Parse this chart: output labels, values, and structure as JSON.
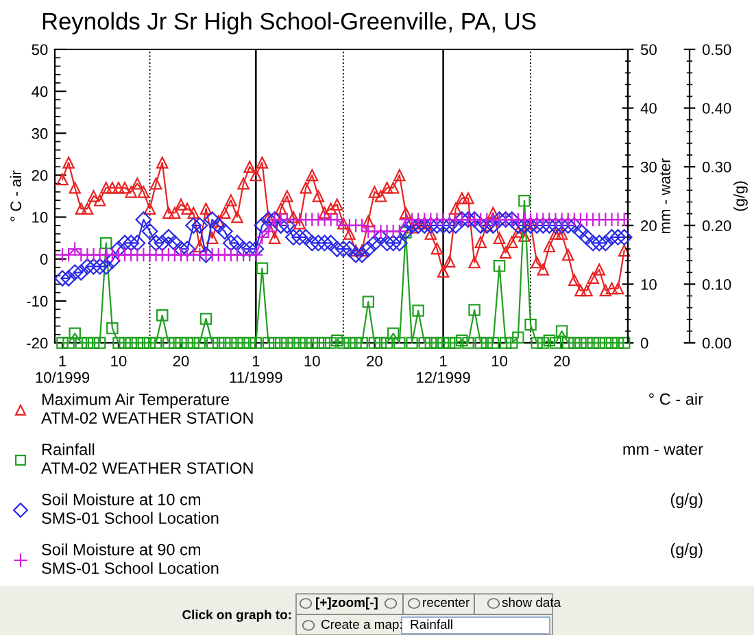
{
  "chart_data": {
    "type": "line",
    "title": "Reynolds Jr Sr High School-Greenville, PA, US",
    "ylabel": "° C - air",
    "y2label": "mm - water",
    "y3label": "(g/g)",
    "x": [
      "1999-10-01",
      "1999-10-02",
      "1999-10-03",
      "1999-10-04",
      "1999-10-05",
      "1999-10-06",
      "1999-10-07",
      "1999-10-08",
      "1999-10-09",
      "1999-10-10",
      "1999-10-11",
      "1999-10-12",
      "1999-10-13",
      "1999-10-14",
      "1999-10-15",
      "1999-10-16",
      "1999-10-17",
      "1999-10-18",
      "1999-10-19",
      "1999-10-20",
      "1999-10-21",
      "1999-10-22",
      "1999-10-23",
      "1999-10-24",
      "1999-10-25",
      "1999-10-26",
      "1999-10-27",
      "1999-10-28",
      "1999-10-29",
      "1999-10-30",
      "1999-10-31",
      "1999-11-01",
      "1999-11-02",
      "1999-11-03",
      "1999-11-04",
      "1999-11-05",
      "1999-11-06",
      "1999-11-07",
      "1999-11-08",
      "1999-11-09",
      "1999-11-10",
      "1999-11-11",
      "1999-11-12",
      "1999-11-13",
      "1999-11-14",
      "1999-11-15",
      "1999-11-16",
      "1999-11-17",
      "1999-11-18",
      "1999-11-19",
      "1999-11-20",
      "1999-11-21",
      "1999-11-22",
      "1999-11-23",
      "1999-11-24",
      "1999-11-25",
      "1999-11-26",
      "1999-11-27",
      "1999-11-28",
      "1999-11-29",
      "1999-11-30",
      "1999-12-01",
      "1999-12-02",
      "1999-12-03",
      "1999-12-04",
      "1999-12-05",
      "1999-12-06",
      "1999-12-07",
      "1999-12-08",
      "1999-12-09",
      "1999-12-10",
      "1999-12-11",
      "1999-12-12",
      "1999-12-13",
      "1999-12-14",
      "1999-12-15",
      "1999-12-16",
      "1999-12-17",
      "1999-12-18",
      "1999-12-19",
      "1999-12-20",
      "1999-12-21",
      "1999-12-22",
      "1999-12-23",
      "1999-12-24",
      "1999-12-25",
      "1999-12-26",
      "1999-12-27",
      "1999-12-28",
      "1999-12-29",
      "1999-12-30"
    ],
    "series": [
      {
        "name": "Maximum Air Temperature\nATM-02 WEATHER STATION",
        "color": "#e82424",
        "marker": "triangle",
        "axis": "y",
        "values": [
          19,
          23,
          17,
          12,
          12,
          15,
          14,
          17,
          17,
          17,
          17,
          16,
          18,
          16,
          12,
          18,
          23,
          11,
          11,
          13,
          12,
          11,
          3,
          12,
          5,
          9,
          11,
          14,
          10,
          18,
          22,
          20,
          23,
          10,
          5,
          12,
          15,
          10,
          8.5,
          17,
          20,
          15,
          11,
          12,
          13,
          8.5,
          6,
          2,
          2,
          9,
          16,
          15,
          17,
          17,
          20,
          11,
          7.5,
          8.5,
          8.5,
          6,
          2.5,
          -3,
          -0.6,
          12,
          14.5,
          14.5,
          -0.8,
          4,
          8,
          11,
          5,
          1.5,
          4,
          6.5,
          5.5,
          8.5,
          -0.8,
          -2.5,
          3,
          6,
          6,
          1,
          -5,
          -7.5,
          -7.5,
          -4.5,
          -2.5,
          -7.5,
          -7,
          -7,
          2
        ]
      },
      {
        "name": "Rainfall\nATM-02 WEATHER STATION",
        "color": "#22a022",
        "marker": "square",
        "axis": "y2",
        "values": [
          0,
          0,
          1.6,
          0,
          0,
          0,
          0,
          17,
          2.5,
          0,
          0,
          0,
          0,
          0,
          0,
          0,
          4.7,
          0,
          0,
          0,
          0,
          0,
          0,
          4.1,
          0,
          0,
          0,
          0,
          0,
          0,
          0,
          0,
          12.7,
          0,
          0,
          0,
          0,
          0,
          0,
          0,
          0,
          0,
          0,
          0,
          0.4,
          0,
          0,
          0,
          0,
          7,
          0,
          0,
          0,
          1.6,
          0,
          18.8,
          0,
          5.5,
          0,
          0,
          0,
          0,
          0,
          0,
          0.4,
          0,
          5.6,
          0,
          0,
          0,
          13.1,
          0,
          0,
          0.9,
          24.2,
          3.1,
          0,
          0,
          0.4,
          0,
          2,
          0,
          0,
          0,
          0,
          0,
          0,
          0,
          0,
          0,
          0
        ]
      },
      {
        "name": "Soil Moisture at 10 cm\nSMS-01 School Location",
        "color": "#2a2ae6",
        "marker": "diamond",
        "axis": "y3",
        "values": [
          0.11,
          0.11,
          0.12,
          0.12,
          0.13,
          0.13,
          0.13,
          0.13,
          0.14,
          0.16,
          0.17,
          0.17,
          0.17,
          0.21,
          0.19,
          0.17,
          0.17,
          0.18,
          0.17,
          0.16,
          0.16,
          0.2,
          0.2,
          0.15,
          0.21,
          0.2,
          0.19,
          0.17,
          0.17,
          0.16,
          0.16,
          0.16,
          0.2,
          0.21,
          0.21,
          0.2,
          0.2,
          0.18,
          0.18,
          0.18,
          0.17,
          0.17,
          0.17,
          0.17,
          0.16,
          0.16,
          0.16,
          0.15,
          0.15,
          0.16,
          0.17,
          0.18,
          0.17,
          0.17,
          0.17,
          0.19,
          0.2,
          0.2,
          0.2,
          0.2,
          0.2,
          0.2,
          0.2,
          0.2,
          0.21,
          0.21,
          0.21,
          0.2,
          0.2,
          0.2,
          0.21,
          0.21,
          0.21,
          0.2,
          0.2,
          0.2,
          0.2,
          0.2,
          0.2,
          0.2,
          0.2,
          0.2,
          0.2,
          0.19,
          0.18,
          0.17,
          0.17,
          0.17,
          0.18,
          0.18,
          0.18
        ]
      },
      {
        "name": "Soil Moisture at 90 cm\nSMS-01 School Location",
        "color": "#cc22dd",
        "marker": "cross",
        "axis": "y3",
        "values": [
          0.15,
          0.15,
          0.16,
          0.15,
          0.15,
          0.15,
          0.15,
          0.15,
          0.15,
          0.15,
          0.15,
          0.15,
          0.15,
          0.15,
          0.15,
          0.15,
          0.15,
          0.15,
          0.15,
          0.15,
          0.15,
          0.15,
          0.15,
          0.15,
          0.15,
          0.15,
          0.15,
          0.15,
          0.15,
          0.15,
          0.15,
          0.15,
          0.18,
          0.19,
          0.21,
          0.21,
          0.21,
          0.21,
          0.21,
          0.21,
          0.21,
          0.21,
          0.21,
          0.21,
          0.21,
          0.2,
          0.2,
          0.2,
          0.2,
          0.19,
          0.19,
          0.19,
          0.19,
          0.19,
          0.19,
          0.21,
          0.21,
          0.21,
          0.21,
          0.21,
          0.21,
          0.21,
          0.21,
          0.21,
          0.21,
          0.21,
          0.21,
          0.21,
          0.21,
          0.21,
          0.21,
          0.21,
          0.21,
          0.21,
          0.21,
          0.21,
          0.21,
          0.21,
          0.21,
          0.21,
          0.21,
          0.21,
          0.21,
          0.21,
          0.21,
          0.21,
          0.21,
          0.21,
          0.21,
          0.21,
          0.21
        ]
      }
    ],
    "xlim": [
      "1999-09-29T19:00",
      "1999-12-30T14:00"
    ],
    "xticks": [
      {
        "value": "1999-10-01",
        "label": "1\n10/1999"
      },
      {
        "value": "1999-10-10",
        "label": "10"
      },
      {
        "value": "1999-10-20",
        "label": "20"
      },
      {
        "value": "1999-11-01",
        "label": "1\n11/1999"
      },
      {
        "value": "1999-11-10",
        "label": "10"
      },
      {
        "value": "1999-11-20",
        "label": "20"
      },
      {
        "value": "1999-12-01",
        "label": "1\n12/1999"
      },
      {
        "value": "1999-12-10",
        "label": "10"
      },
      {
        "value": "1999-12-20",
        "label": "20"
      }
    ],
    "ylim": [
      -20,
      50
    ],
    "yticks": [
      -20,
      -10,
      0,
      10,
      20,
      30,
      40,
      50
    ],
    "y2lim": [
      0,
      50
    ],
    "y2ticks": [
      0,
      10,
      20,
      30,
      40,
      50
    ],
    "y3lim": [
      0,
      0.5
    ],
    "y3ticks": [
      {
        "value": 0,
        "label": "0.00"
      },
      {
        "value": 0.1,
        "label": "0.10"
      },
      {
        "value": 0.2,
        "label": "0.20"
      },
      {
        "value": 0.3,
        "label": "0.30"
      },
      {
        "value": 0.4,
        "label": "0.40"
      },
      {
        "value": 0.5,
        "label": "0.50"
      }
    ],
    "ref_lines": [
      {
        "axis": "x",
        "value": "1999-10-15",
        "line_style": "dotted"
      },
      {
        "axis": "x",
        "value": "1999-11-01",
        "line_style": "solid"
      },
      {
        "axis": "x",
        "value": "1999-11-15",
        "line_style": "dotted"
      },
      {
        "axis": "x",
        "value": "1999-12-01",
        "line_style": "solid"
      },
      {
        "axis": "x",
        "value": "1999-12-15",
        "line_style": "dotted"
      }
    ],
    "grid": false,
    "legend": "bottom",
    "line_style": "solid",
    "annotations": [
      "Click on graph to:",
      "[+]zoom[-]",
      "recenter",
      "show data",
      "Create a map:",
      "Rainfall"
    ]
  }
}
